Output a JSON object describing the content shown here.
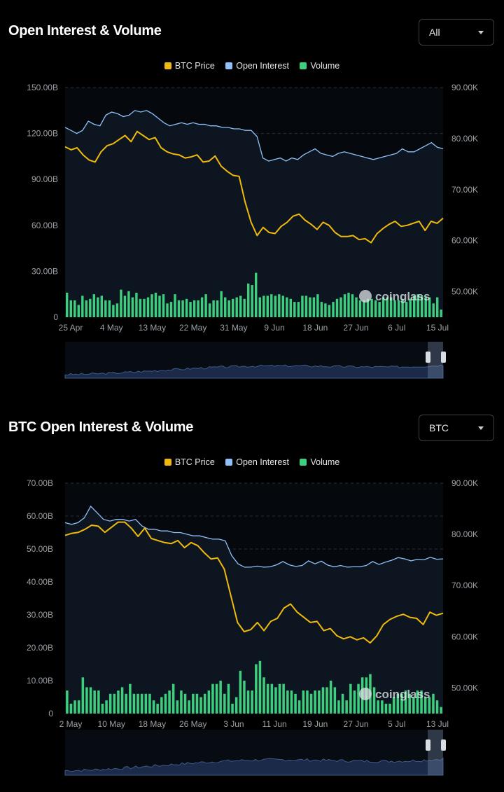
{
  "colors": {
    "btc_price": "#F0B90B",
    "open_interest": "#8FC0F7",
    "volume": "#3ECF7E",
    "grid": "#2a2f36",
    "axis_text": "#9aa0a6",
    "plot_bg": "#0d1620",
    "navigator_fill": "#1a2a48",
    "navigator_line": "#3f5a8a"
  },
  "panels": [
    {
      "title": "Open Interest & Volume",
      "selector_value": "All",
      "legend": [
        "BTC Price",
        "Open Interest",
        "Volume"
      ],
      "watermark": "coinglass",
      "chart_data": {
        "type": "bar",
        "x_tick_labels": [
          "25 Apr",
          "4 May",
          "13 May",
          "22 May",
          "31 May",
          "9 Jun",
          "18 Jun",
          "27 Jun",
          "6 Jul",
          "15 Jul"
        ],
        "y_left_ticks": [
          "0",
          "30.00B",
          "60.00B",
          "90.00B",
          "120.00B",
          "150.00B"
        ],
        "y_right_ticks": [
          "50.00K",
          "60.00K",
          "70.00K",
          "80.00K",
          "90.00K"
        ],
        "ylim_left": [
          0,
          150
        ],
        "ylim_right": [
          45,
          90
        ],
        "series": [
          {
            "name": "Open Interest",
            "axis": "left",
            "unit": "B",
            "values": [
              124,
              122,
              120,
              122,
              128,
              126,
              125,
              132,
              134,
              133,
              131,
              132,
              135,
              134,
              135,
              133,
              130,
              127,
              125,
              126,
              127,
              126,
              127,
              126,
              126,
              125,
              125,
              124,
              124,
              123,
              123,
              122,
              122,
              118,
              104,
              102,
              103,
              104,
              102,
              104,
              103,
              106,
              108,
              110,
              107,
              106,
              105,
              107,
              108,
              107,
              106,
              105,
              104,
              103,
              104,
              105,
              106,
              107,
              110,
              108,
              108,
              110,
              112,
              114,
              111,
              110
            ]
          },
          {
            "name": "BTC Price",
            "axis": "right",
            "unit": "K",
            "values": [
              78.4,
              77.8,
              78.2,
              76.8,
              75.8,
              75.4,
              77.4,
              78.6,
              79.0,
              79.8,
              80.6,
              79.4,
              81.4,
              80.6,
              79.8,
              80.2,
              78.2,
              77.4,
              77.0,
              76.8,
              76.2,
              76.4,
              76.8,
              75.4,
              75.6,
              76.6,
              74.6,
              73.6,
              72.8,
              72.6,
              67.6,
              63.6,
              61.0,
              62.6,
              61.6,
              61.4,
              62.8,
              63.6,
              64.8,
              65.2,
              64.0,
              63.2,
              62.2,
              63.6,
              63.0,
              61.6,
              60.8,
              60.8,
              61.0,
              60.2,
              60.4,
              59.6,
              61.4,
              62.4,
              63.2,
              63.8,
              62.8,
              63.0,
              63.4,
              63.8,
              62.0,
              63.8,
              63.4,
              64.4
            ]
          },
          {
            "name": "Volume",
            "axis": "left",
            "unit": "B",
            "values": [
              16,
              11,
              11,
              8,
              14,
              11,
              12,
              15,
              13,
              14,
              11,
              11,
              8,
              9,
              18,
              14,
              17,
              13,
              16,
              12,
              12,
              13,
              15,
              16,
              14,
              15,
              9,
              10,
              15,
              11,
              11,
              12,
              10,
              11,
              11,
              13,
              15,
              9,
              11,
              11,
              17,
              13,
              11,
              12,
              13,
              14,
              12,
              22,
              21,
              29,
              13,
              14,
              14,
              15,
              14,
              15,
              14,
              13,
              12,
              10,
              10,
              14,
              14,
              13,
              13,
              15,
              10,
              9,
              8,
              10,
              12,
              13,
              15,
              16,
              15,
              13,
              11,
              11,
              12,
              12,
              11,
              10,
              13,
              13,
              13,
              11,
              11,
              12,
              10,
              12,
              14,
              15,
              14,
              13,
              13,
              9,
              13,
              5
            ]
          }
        ]
      }
    },
    {
      "title": "BTC Open Interest & Volume",
      "selector_value": "BTC",
      "legend": [
        "BTC Price",
        "Open Interest",
        "Volume"
      ],
      "watermark": "coinglass",
      "chart_data": {
        "type": "bar",
        "x_tick_labels": [
          "2 May",
          "10 May",
          "18 May",
          "26 May",
          "3 Jun",
          "11 Jun",
          "19 Jun",
          "27 Jun",
          "5 Jul",
          "13 Jul"
        ],
        "y_left_ticks": [
          "0",
          "10.00B",
          "20.00B",
          "30.00B",
          "40.00B",
          "50.00B",
          "60.00B",
          "70.00B"
        ],
        "y_right_ticks": [
          "50.00K",
          "60.00K",
          "70.00K",
          "80.00K",
          "90.00K"
        ],
        "ylim_left": [
          0,
          70
        ],
        "ylim_right": [
          45,
          90
        ],
        "series": [
          {
            "name": "Open Interest",
            "axis": "left",
            "unit": "B",
            "values": [
              58,
              57.5,
              58,
              59.5,
              63,
              61,
              59,
              58.5,
              59,
              59,
              58.5,
              59,
              57,
              56,
              56,
              55.5,
              55.5,
              55,
              55,
              54.5,
              54,
              54,
              53.5,
              53,
              53,
              52.5,
              48,
              45.5,
              44.5,
              44.5,
              44.8,
              44.5,
              44.6,
              45.2,
              46.2,
              45.2,
              44.7,
              45.0,
              46.4,
              45.5,
              46.3,
              45.1,
              44.6,
              45.0,
              44.5,
              44.6,
              44.6,
              45.0,
              46.2,
              45.3,
              46.0,
              46.6,
              47.4,
              47.0,
              46.4,
              46.9,
              46.7,
              47.5,
              46.9,
              47.0
            ]
          },
          {
            "name": "BTC Price",
            "axis": "right",
            "unit": "K",
            "values": [
              79.8,
              80.2,
              80.4,
              81.0,
              81.8,
              81.6,
              80.4,
              81.4,
              82.4,
              82.4,
              81.2,
              79.6,
              81.2,
              79.2,
              78.8,
              78.4,
              78.2,
              78.8,
              77.4,
              78.4,
              77.8,
              76.4,
              75.2,
              75.4,
              73.2,
              68.0,
              62.8,
              61.0,
              61.4,
              62.8,
              61.2,
              63.0,
              63.6,
              65.6,
              66.4,
              64.8,
              63.8,
              62.8,
              63.0,
              61.2,
              61.6,
              60.2,
              59.6,
              60.0,
              59.4,
              59.8,
              58.8,
              60.2,
              62.4,
              63.4,
              64.0,
              64.4,
              63.8,
              63.6,
              62.4,
              64.8,
              64.2,
              64.6
            ]
          },
          {
            "name": "Volume",
            "axis": "left",
            "unit": "B",
            "values": [
              7,
              3,
              4,
              4,
              11,
              8,
              8,
              7,
              7,
              3,
              4,
              6,
              6,
              7,
              8,
              6,
              9,
              6,
              6,
              6,
              6,
              6,
              4,
              3,
              5,
              6,
              7,
              9,
              4,
              7,
              6,
              4,
              6,
              6,
              5,
              6,
              7,
              9,
              9,
              10,
              6,
              9,
              3,
              5,
              13,
              10,
              7,
              7,
              15,
              16,
              11,
              9,
              9,
              8,
              9,
              9,
              7,
              7,
              6,
              4,
              7,
              7,
              6,
              7,
              7,
              8,
              8,
              10,
              8,
              4,
              6,
              4,
              9,
              7,
              9,
              11,
              11,
              12,
              8,
              4,
              4,
              3,
              3,
              5,
              6,
              6,
              7,
              6,
              5,
              7,
              7,
              5,
              5,
              6,
              4,
              2
            ]
          }
        ]
      }
    }
  ]
}
